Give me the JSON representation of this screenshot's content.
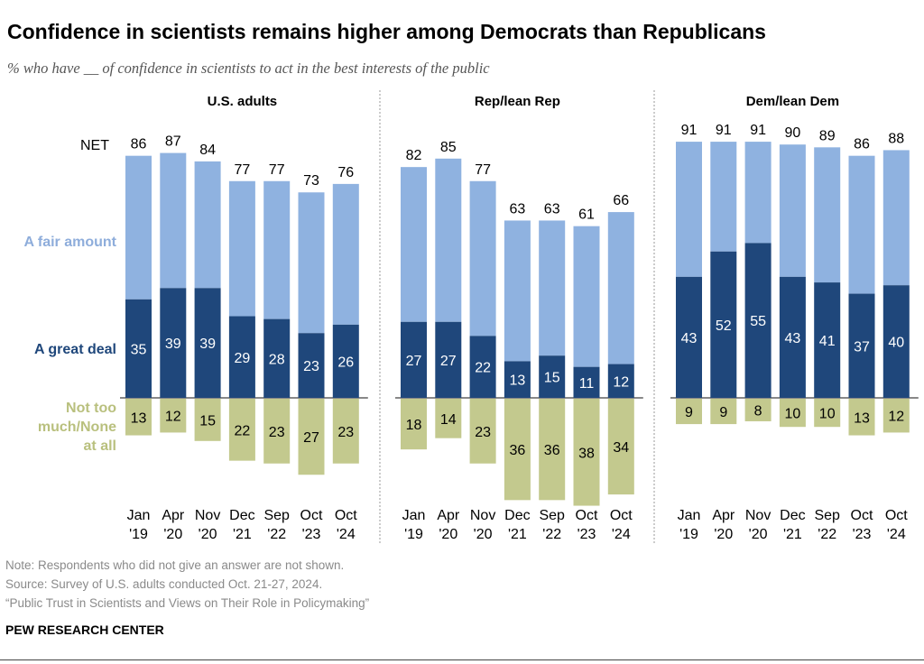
{
  "title": "Confidence in scientists remains higher among Democrats than Republicans",
  "subtitle": "% who have __ of confidence in scientists to act in the best interests of the public",
  "notes": [
    "Note: Respondents who did not give an answer are not shown.",
    "Source: Survey of U.S. adults conducted Oct. 21-27, 2024.",
    "“Public Trust in Scientists and Views on Their Role in Policymaking”"
  ],
  "brand": "PEW RESEARCH CENTER",
  "chart_data": {
    "type": "bar",
    "stacked": true,
    "categories": [
      [
        "Jan",
        "'19"
      ],
      [
        "Apr",
        "'20"
      ],
      [
        "Nov",
        "'20"
      ],
      [
        "Dec",
        "'21"
      ],
      [
        "Sep",
        "'22"
      ],
      [
        "Oct",
        "'23"
      ],
      [
        "Oct",
        "'24"
      ]
    ],
    "row_labels": {
      "net": "NET",
      "fair": "A fair amount",
      "great": "A great deal",
      "not": [
        "Not too",
        "much/None",
        "at all"
      ]
    },
    "colors": {
      "great": "#1f477b",
      "fair": "#8fb2e0",
      "not": "#c3c98e",
      "fair_label": "#8eaddb",
      "not_label": "#b9c07e"
    },
    "panels": [
      {
        "name": "U.S. adults",
        "net": [
          86,
          87,
          84,
          77,
          77,
          73,
          76
        ],
        "great_deal": [
          35,
          39,
          39,
          29,
          28,
          23,
          26
        ],
        "not_too_much_none": [
          13,
          12,
          15,
          22,
          23,
          27,
          23
        ]
      },
      {
        "name": "Rep/lean Rep",
        "net": [
          82,
          85,
          77,
          63,
          63,
          61,
          66
        ],
        "great_deal": [
          27,
          27,
          22,
          13,
          15,
          11,
          12
        ],
        "not_too_much_none": [
          18,
          14,
          23,
          36,
          36,
          38,
          34
        ]
      },
      {
        "name": "Dem/lean Dem",
        "net": [
          91,
          91,
          91,
          90,
          89,
          86,
          88
        ],
        "great_deal": [
          43,
          52,
          55,
          43,
          41,
          37,
          40
        ],
        "not_too_much_none": [
          9,
          9,
          8,
          10,
          10,
          13,
          12
        ]
      }
    ]
  }
}
